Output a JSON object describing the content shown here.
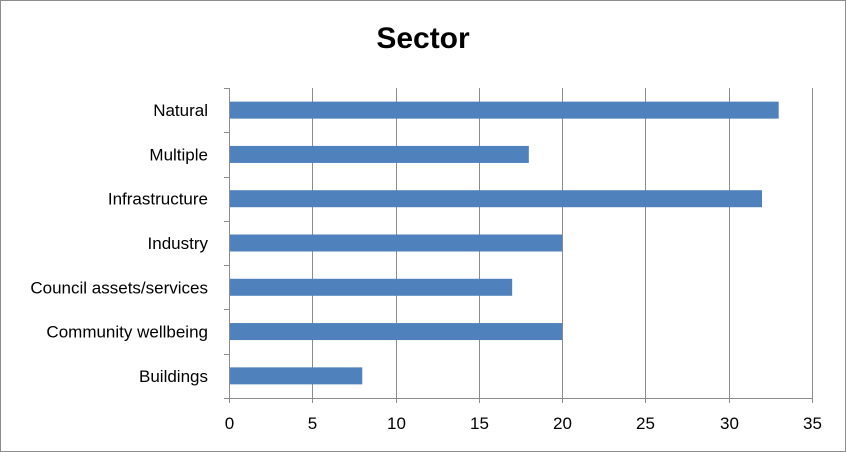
{
  "chart_data": {
    "type": "bar",
    "orientation": "horizontal",
    "title": "Sector",
    "categories": [
      "Natural",
      "Multiple",
      "Infrastructure",
      "Industry",
      "Council assets/services",
      "Community wellbeing",
      "Buildings"
    ],
    "values": [
      33,
      18,
      32,
      20,
      17,
      20,
      8
    ],
    "xlim": [
      0,
      35
    ],
    "xticks": [
      0,
      5,
      10,
      15,
      20,
      25,
      30,
      35
    ],
    "grid": "vertical",
    "legend": "none",
    "bar_color": "#4f81bd"
  }
}
